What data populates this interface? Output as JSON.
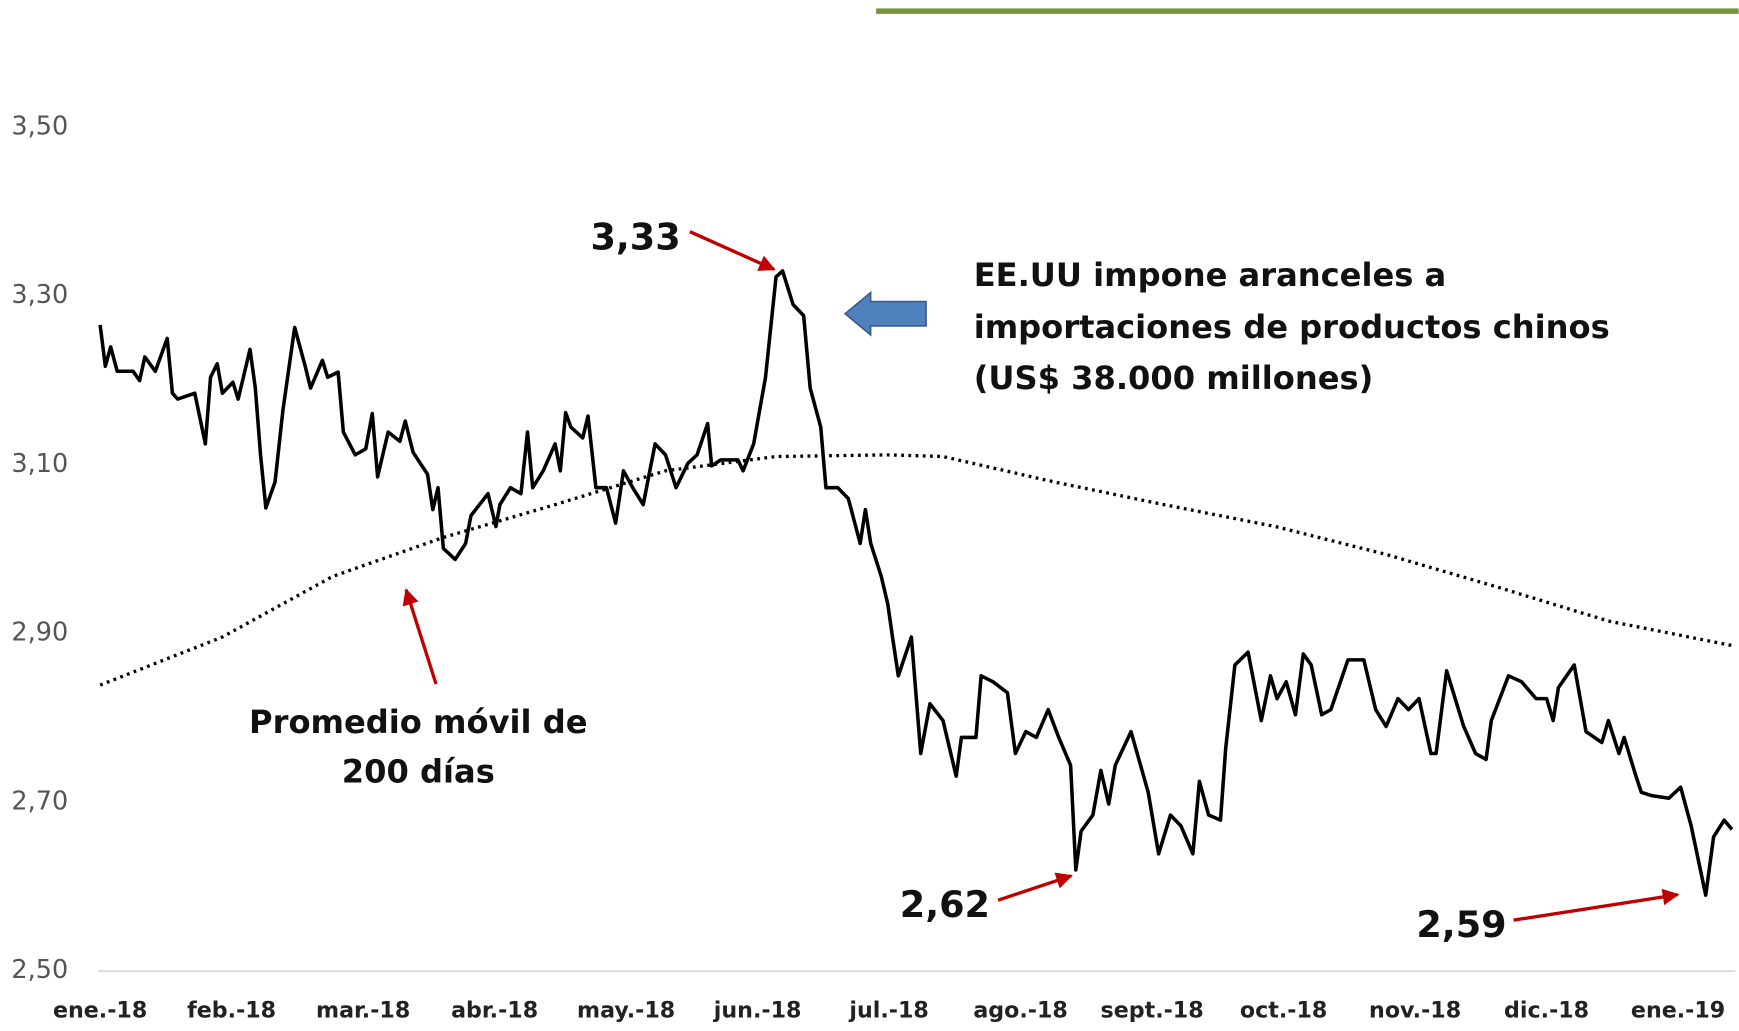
{
  "chart_data": {
    "type": "line",
    "annotations": [
      "3,33",
      "2,62",
      "2,59"
    ],
    "note": [
      "EE.UU impone aranceles a",
      "importaciones de productos chinos",
      "(US$ 38.000 millones)"
    ],
    "ma_label": [
      "Promedio móvil de",
      "200 días"
    ],
    "xlim": [
      0,
      12.41
    ],
    "xticks": [
      {
        "value": 0,
        "label": "ene.-18"
      },
      {
        "value": 1,
        "label": "feb.-18"
      },
      {
        "value": 2,
        "label": "mar.-18"
      },
      {
        "value": 3,
        "label": "abr.-18"
      },
      {
        "value": 4,
        "label": "may.-18"
      },
      {
        "value": 5,
        "label": "jun.-18"
      },
      {
        "value": 6,
        "label": "jul.-18"
      },
      {
        "value": 7,
        "label": "ago.-18"
      },
      {
        "value": 8,
        "label": "sept.-18"
      },
      {
        "value": 9,
        "label": "oct.-18"
      },
      {
        "value": 10,
        "label": "nov.-18"
      },
      {
        "value": 11,
        "label": "dic.-18"
      },
      {
        "value": 12,
        "label": "ene.-19"
      }
    ],
    "ylim": [
      2.5,
      3.5
    ],
    "yticks": [
      {
        "value": 2.5,
        "label": "2,50"
      },
      {
        "value": 2.7,
        "label": "2,70"
      },
      {
        "value": 2.9,
        "label": "2,90"
      },
      {
        "value": 3.1,
        "label": "3,10"
      },
      {
        "value": 3.3,
        "label": "3,30"
      },
      {
        "value": 3.5,
        "label": "3,50"
      }
    ],
    "grid": false,
    "series": [
      {
        "color": "#000000",
        "style": "solid",
        "x": [
          0,
          0.04,
          0.08,
          0.13,
          0.25,
          0.3,
          0.34,
          0.42,
          0.51,
          0.55,
          0.59,
          0.72,
          0.8,
          0.84,
          0.89,
          0.93,
          1.01,
          1.05,
          1.1,
          1.14,
          1.18,
          1.22,
          1.26,
          1.33,
          1.39,
          1.48,
          1.56,
          1.6,
          1.69,
          1.73,
          1.81,
          1.85,
          1.94,
          2.02,
          2.07,
          2.11,
          2.19,
          2.28,
          2.32,
          2.38,
          2.49,
          2.53,
          2.57,
          2.61,
          2.7,
          2.78,
          2.82,
          2.95,
          3.01,
          3.04,
          3.12,
          3.2,
          3.25,
          3.29,
          3.37,
          3.46,
          3.5,
          3.54,
          3.58,
          3.67,
          3.71,
          3.77,
          3.85,
          3.92,
          3.98,
          4.05,
          4.13,
          4.22,
          4.3,
          4.38,
          4.47,
          4.54,
          4.62,
          4.65,
          4.72,
          4.85,
          4.89,
          4.97,
          5.06,
          5.14,
          5.19,
          5.27,
          5.35,
          5.4,
          5.48,
          5.52,
          5.61,
          5.69,
          5.78,
          5.82,
          5.86,
          5.94,
          5.99,
          6.03,
          6.07,
          6.17,
          6.24,
          6.31,
          6.41,
          6.51,
          6.55,
          6.66,
          6.7,
          6.79,
          6.9,
          6.96,
          7.04,
          7.12,
          7.21,
          7.29,
          7.38,
          7.42,
          7.46,
          7.55,
          7.61,
          7.67,
          7.72,
          7.84,
          7.97,
          8.05,
          8.14,
          8.22,
          8.31,
          8.36,
          8.43,
          8.52,
          8.56,
          8.63,
          8.73,
          8.83,
          8.9,
          8.95,
          9.02,
          9.09,
          9.15,
          9.21,
          9.29,
          9.36,
          9.49,
          9.61,
          9.7,
          9.78,
          9.87,
          9.95,
          10.03,
          10.12,
          10.16,
          10.24,
          10.37,
          10.46,
          10.54,
          10.58,
          10.71,
          10.81,
          10.92,
          11.0,
          11.05,
          11.09,
          11.21,
          11.3,
          11.42,
          11.47,
          11.55,
          11.59,
          11.68,
          11.72,
          11.8,
          11.93,
          12.02,
          12.1,
          12.21,
          12.27,
          12.35,
          12.41
        ],
        "values": [
          3.266,
          3.217,
          3.24,
          3.211,
          3.211,
          3.2,
          3.228,
          3.211,
          3.25,
          3.185,
          3.178,
          3.185,
          3.125,
          3.204,
          3.22,
          3.185,
          3.198,
          3.178,
          3.211,
          3.237,
          3.191,
          3.112,
          3.049,
          3.08,
          3.165,
          3.263,
          3.217,
          3.191,
          3.224,
          3.204,
          3.21,
          3.139,
          3.112,
          3.119,
          3.161,
          3.086,
          3.139,
          3.128,
          3.152,
          3.115,
          3.089,
          3.047,
          3.073,
          3.001,
          2.988,
          3.007,
          3.04,
          3.066,
          3.027,
          3.053,
          3.073,
          3.066,
          3.139,
          3.073,
          3.093,
          3.125,
          3.093,
          3.162,
          3.145,
          3.132,
          3.158,
          3.073,
          3.073,
          3.031,
          3.093,
          3.073,
          3.053,
          3.125,
          3.112,
          3.073,
          3.102,
          3.112,
          3.149,
          3.099,
          3.106,
          3.106,
          3.093,
          3.125,
          3.204,
          3.323,
          3.33,
          3.29,
          3.277,
          3.191,
          3.145,
          3.073,
          3.073,
          3.06,
          3.007,
          3.047,
          3.007,
          2.968,
          2.935,
          2.892,
          2.85,
          2.896,
          2.758,
          2.817,
          2.797,
          2.731,
          2.777,
          2.777,
          2.85,
          2.843,
          2.83,
          2.758,
          2.784,
          2.777,
          2.81,
          2.777,
          2.744,
          2.62,
          2.666,
          2.685,
          2.738,
          2.698,
          2.744,
          2.784,
          2.712,
          2.639,
          2.685,
          2.672,
          2.639,
          2.725,
          2.685,
          2.679,
          2.764,
          2.863,
          2.878,
          2.797,
          2.85,
          2.823,
          2.843,
          2.804,
          2.876,
          2.863,
          2.804,
          2.81,
          2.869,
          2.869,
          2.81,
          2.79,
          2.823,
          2.81,
          2.823,
          2.758,
          2.758,
          2.856,
          2.79,
          2.758,
          2.751,
          2.797,
          2.85,
          2.843,
          2.823,
          2.823,
          2.797,
          2.836,
          2.863,
          2.784,
          2.771,
          2.797,
          2.758,
          2.777,
          2.731,
          2.712,
          2.708,
          2.705,
          2.718,
          2.672,
          2.59,
          2.659,
          2.679,
          2.668
        ]
      },
      {
        "color": "#000000",
        "style": "dotted",
        "x": [
          0,
          0.93,
          1.77,
          2.61,
          3.46,
          4.3,
          5.14,
          5.99,
          6.41,
          7.25,
          8.09,
          8.94,
          9.78,
          10.63,
          11.47,
          12.41
        ],
        "values": [
          2.839,
          2.896,
          2.968,
          3.014,
          3.053,
          3.093,
          3.11,
          3.112,
          3.11,
          3.08,
          3.053,
          3.027,
          2.994,
          2.955,
          2.915,
          2.886
        ]
      }
    ]
  }
}
